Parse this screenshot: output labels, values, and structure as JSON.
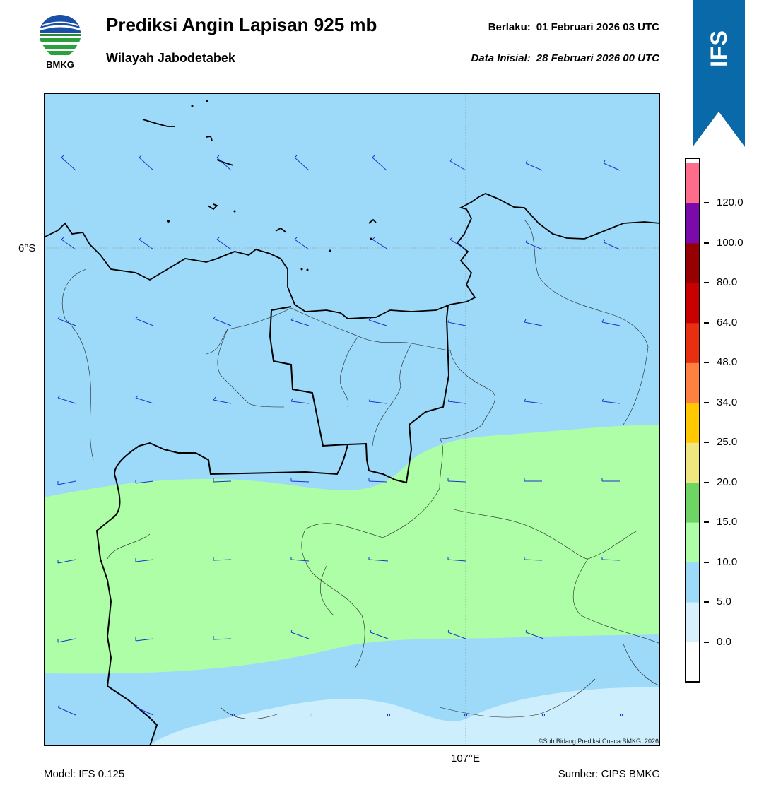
{
  "header": {
    "title": "Prediksi Angin Lapisan 925 mb",
    "subtitle": "Wilayah Jabodetabek",
    "valid_label": "Berlaku:",
    "valid_time": "01 Februari 2026 03 UTC",
    "init_label": "Data Inisial:",
    "init_time": "28 Februari 2026 00 UTC"
  },
  "logo": {
    "text": "BMKG",
    "icon": "bmkg-logo-icon"
  },
  "banner": {
    "text": "IFS",
    "color": "#0a69a8"
  },
  "map": {
    "lat_label": "6°S",
    "lon_label": "107°E",
    "copyright": "©Sub Bidang Prediksi Cuaca BMKG, 2026",
    "colors": {
      "calm": "#cdeffd",
      "light": "#9dd9f9",
      "moderate": "#adfea6",
      "wind_barb": "#1a33cc",
      "coastline": "#000000"
    }
  },
  "colorbar": {
    "levels": [
      "0.0",
      "5.0",
      "10.0",
      "15.0",
      "20.0",
      "25.0",
      "34.0",
      "48.0",
      "64.0",
      "80.0",
      "100.0",
      "120.0"
    ],
    "colors": [
      "#ffffff",
      "#d7f0fc",
      "#9dd9f9",
      "#adfea6",
      "#6ed463",
      "#f0e680",
      "#ffc800",
      "#ff8040",
      "#e83010",
      "#c80000",
      "#960000",
      "#7a0aaa",
      "#ff6b8b"
    ]
  },
  "footer": {
    "model": "Model: IFS 0.125",
    "source": "Sumber: CIPS BMKG"
  }
}
